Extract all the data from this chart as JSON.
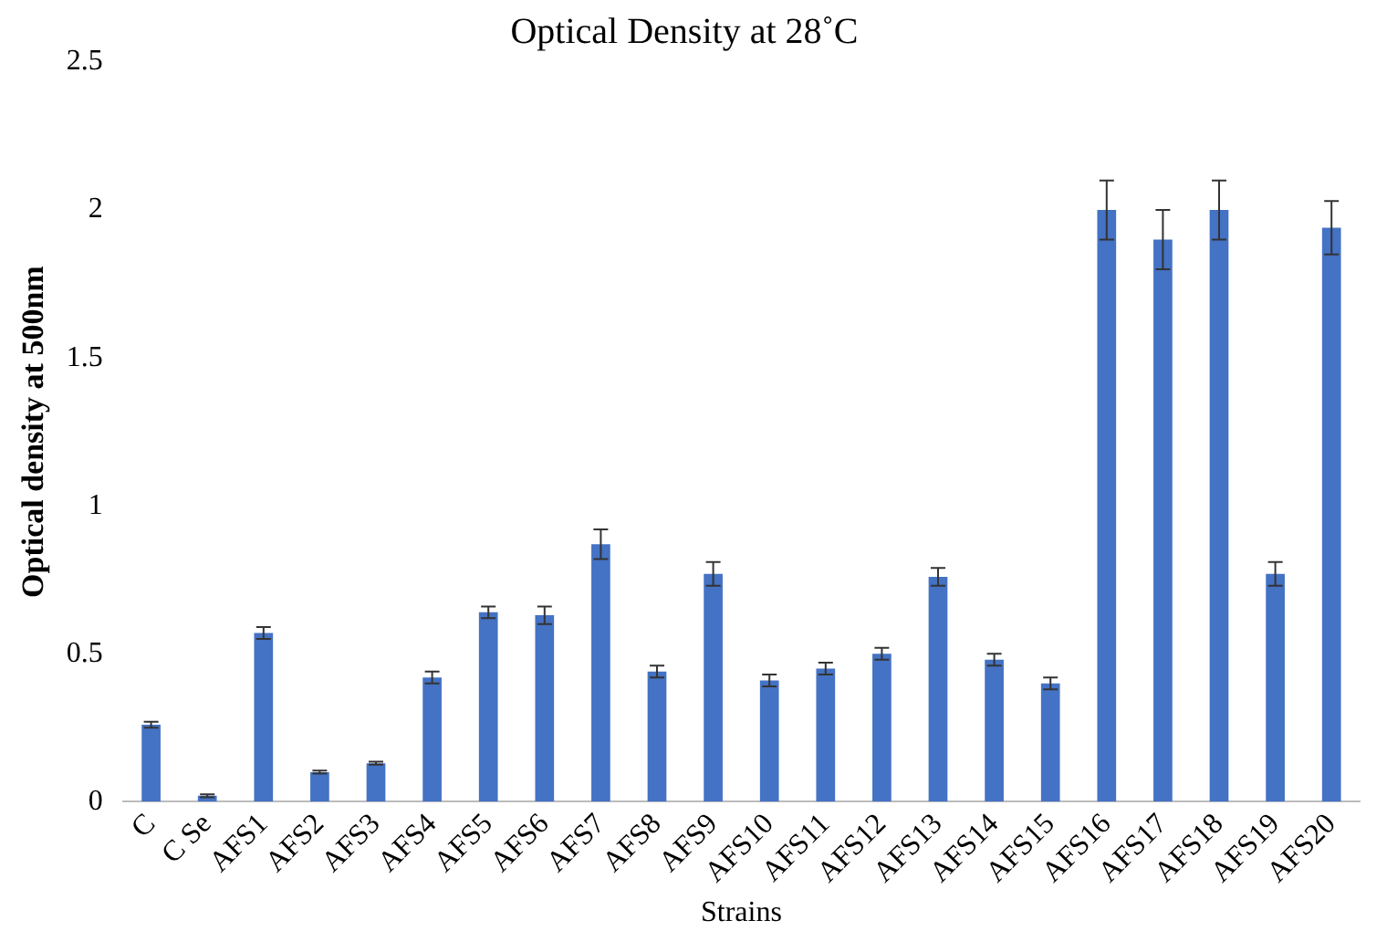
{
  "chart_data": {
    "type": "bar",
    "title": "Optical Density at 28˚C",
    "xlabel": "Strains",
    "ylabel": "Optical density at 500nm",
    "categories": [
      "C",
      "C Se",
      "AFS1",
      "AFS2",
      "AFS3",
      "AFS4",
      "AFS5",
      "AFS6",
      "AFS7",
      "AFS8",
      "AFS9",
      "AFS10",
      "AFS11",
      "AFS12",
      "AFS13",
      "AFS14",
      "AFS15",
      "AFS16",
      "AFS17",
      "AFS18",
      "AFS19",
      "AFS20"
    ],
    "values": [
      0.26,
      0.02,
      0.57,
      0.1,
      0.13,
      0.42,
      0.64,
      0.63,
      0.87,
      0.44,
      0.77,
      0.41,
      0.45,
      0.5,
      0.76,
      0.48,
      0.4,
      2.0,
      1.9,
      2.0,
      0.77,
      1.94
    ],
    "errors": [
      0.01,
      0.005,
      0.02,
      0.005,
      0.005,
      0.02,
      0.02,
      0.03,
      0.05,
      0.02,
      0.04,
      0.02,
      0.02,
      0.02,
      0.03,
      0.02,
      0.02,
      0.1,
      0.1,
      0.1,
      0.04,
      0.09
    ],
    "color": "#4472c4",
    "ylim": [
      0,
      2.5
    ],
    "yticks": [
      0,
      0.5,
      1,
      1.5,
      2,
      2.5
    ],
    "grid": false,
    "legend": false
  }
}
